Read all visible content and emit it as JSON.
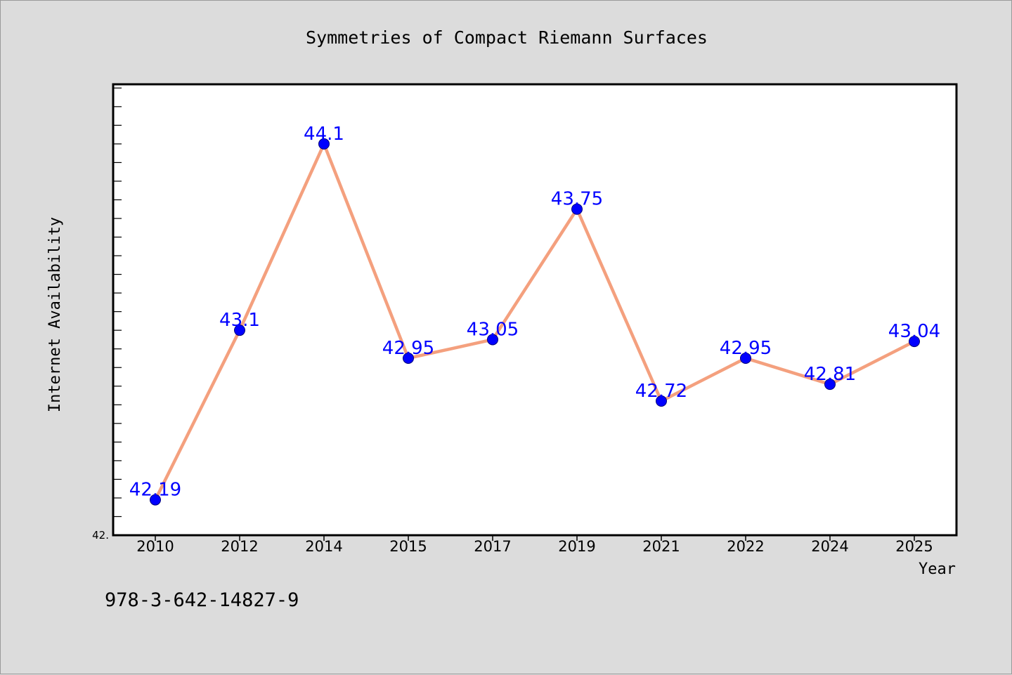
{
  "chart_data": {
    "type": "line",
    "title": "Symmetries of Compact Riemann Surfaces",
    "xlabel": "Year",
    "ylabel": "Internet Availability",
    "categories": [
      "2010",
      "2012",
      "2014",
      "2015",
      "2017",
      "2019",
      "2021",
      "2022",
      "2024",
      "2025"
    ],
    "values": [
      42.19,
      43.1,
      44.1,
      42.95,
      43.05,
      43.75,
      42.72,
      42.95,
      42.81,
      43.04
    ],
    "data_labels": [
      "42.19",
      "43.1",
      "44.1",
      "42.95",
      "43.05",
      "43.75",
      "42.72",
      "42.95",
      "42.81",
      "43.04"
    ],
    "ylim": [
      42.0,
      44.42
    ],
    "y_ticks_labeled": [
      "42."
    ],
    "y_minor_tick_step": 0.1,
    "grid": false,
    "legend": "none",
    "footer_text": "978-3-642-14827-9",
    "colors": {
      "line": "#f4a07e",
      "marker": "#0000ff",
      "data_label": "#0000ff",
      "plot_background": "#ffffff",
      "figure_background": "#dcdcdc",
      "axis": "#000000"
    }
  }
}
